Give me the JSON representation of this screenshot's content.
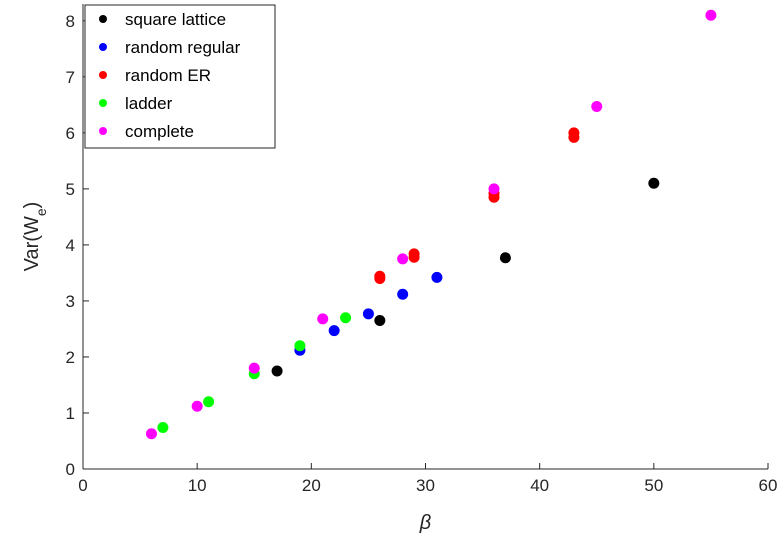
{
  "chart_data": {
    "type": "scatter",
    "title": "",
    "xlabel": "β",
    "ylabel": "Var(W",
    "ylabel_subscript": "e",
    "ylabel_close": ")",
    "xlim": [
      0,
      60
    ],
    "ylim": [
      0,
      8.3
    ],
    "xticks": [
      0,
      10,
      20,
      30,
      40,
      50,
      60
    ],
    "yticks": [
      0,
      1,
      2,
      3,
      4,
      5,
      6,
      7,
      8
    ],
    "grid": false,
    "legend_position": "top-left",
    "series": [
      {
        "name": "square lattice",
        "color": "#000000",
        "points": [
          [
            17,
            1.75
          ],
          [
            26,
            2.65
          ],
          [
            37,
            3.77
          ],
          [
            50,
            5.1
          ]
        ]
      },
      {
        "name": "random regular",
        "color": "#0000ff",
        "points": [
          [
            19,
            2.12
          ],
          [
            22,
            2.47
          ],
          [
            25,
            2.77
          ],
          [
            28,
            3.12
          ],
          [
            31,
            3.42
          ]
        ]
      },
      {
        "name": "random ER",
        "color": "#ff0000",
        "points": [
          [
            26,
            3.4
          ],
          [
            26,
            3.44
          ],
          [
            29,
            3.78
          ],
          [
            29,
            3.84
          ],
          [
            36,
            4.85
          ],
          [
            36,
            4.92
          ],
          [
            43,
            5.92
          ],
          [
            43,
            6.0
          ]
        ]
      },
      {
        "name": "ladder",
        "color": "#00ff00",
        "points": [
          [
            7,
            0.74
          ],
          [
            11,
            1.2
          ],
          [
            15,
            1.7
          ],
          [
            19,
            2.2
          ],
          [
            23,
            2.7
          ]
        ]
      },
      {
        "name": "complete",
        "color": "#ff00ff",
        "points": [
          [
            6,
            0.63
          ],
          [
            10,
            1.12
          ],
          [
            15,
            1.8
          ],
          [
            21,
            2.68
          ],
          [
            28,
            3.75
          ],
          [
            36,
            5.0
          ],
          [
            45,
            6.47
          ],
          [
            55,
            8.1
          ]
        ]
      }
    ]
  }
}
